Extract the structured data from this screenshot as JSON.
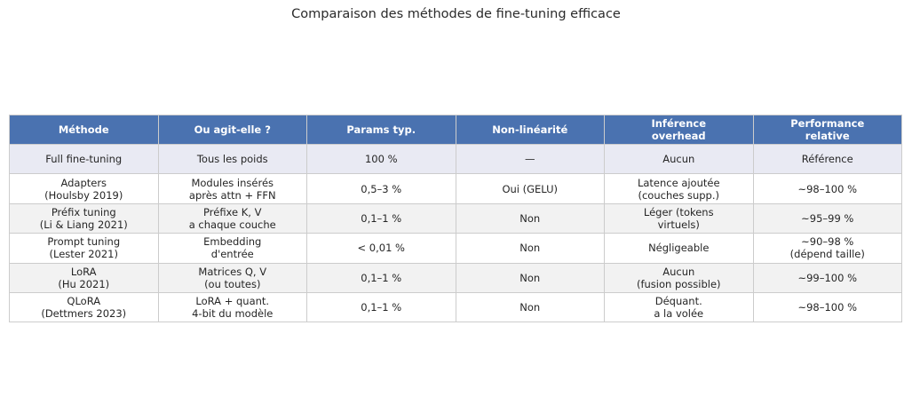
{
  "title": "Comparaison des méthodes de fine-tuning efficace",
  "colors": {
    "header_bg": "#4a72b0",
    "header_text": "#ffffff",
    "row_highlight_bg": "#e9eaf3",
    "row_stripe_bg": "#f2f2f2",
    "row_plain_bg": "#ffffff",
    "border": "#cccccc",
    "text": "#262626"
  },
  "chart_data": {
    "type": "table",
    "title": "Comparaison des méthodes de fine-tuning efficace",
    "columns": [
      "Méthode",
      "Ou agit-elle ?",
      "Params typ.",
      "Non-linéarité",
      "Inférence\noverhead",
      "Performance\nrelative"
    ],
    "highlight_first_row": true,
    "rows": [
      [
        "Full fine-tuning",
        "Tous les poids",
        "100 %",
        "—",
        "Aucun",
        "Référence"
      ],
      [
        "Adapters\n(Houlsby 2019)",
        "Modules insérés\naprès attn + FFN",
        "0,5–3 %",
        "Oui (GELU)",
        "Latence ajoutée\n(couches supp.)",
        "~98–100 %"
      ],
      [
        "Préfix tuning\n(Li & Liang 2021)",
        "Préfixe K, V\na chaque couche",
        "0,1–1 %",
        "Non",
        "Léger (tokens\nvirtuels)",
        "~95–99 %"
      ],
      [
        "Prompt tuning\n(Lester 2021)",
        "Embedding\nd'entrée",
        "< 0,01 %",
        "Non",
        "Négligeable",
        "~90–98 %\n(dépend taille)"
      ],
      [
        "LoRA\n(Hu 2021)",
        "Matrices Q, V\n(ou toutes)",
        "0,1–1 %",
        "Non",
        "Aucun\n(fusion possible)",
        "~99–100 %"
      ],
      [
        "QLoRA\n(Dettmers 2023)",
        "LoRA + quant.\n4-bit du modèle",
        "0,1–1 %",
        "Non",
        "Déquant.\na la volée",
        "~98–100 %"
      ]
    ]
  }
}
